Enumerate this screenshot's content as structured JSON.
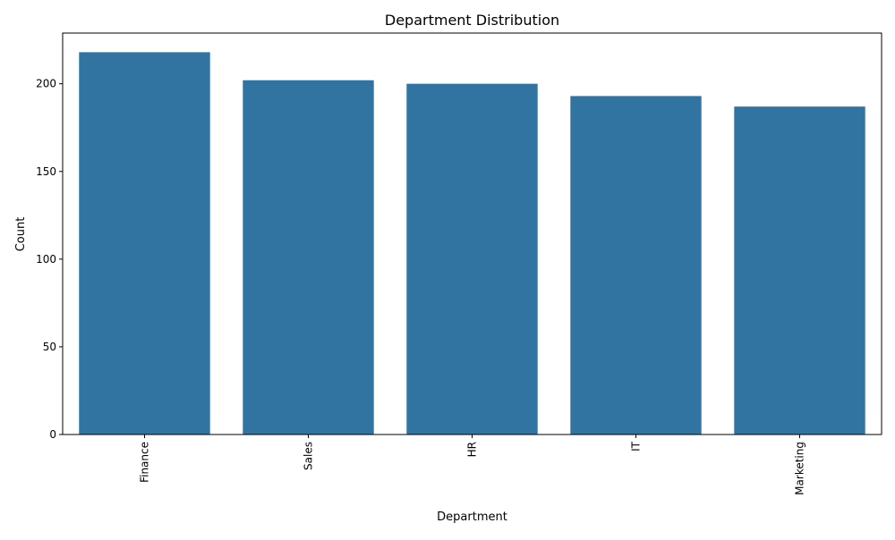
{
  "chart_data": {
    "type": "bar",
    "title": "Department Distribution",
    "xlabel": "Department",
    "ylabel": "Count",
    "categories": [
      "Finance",
      "Sales",
      "HR",
      "IT",
      "Marketing"
    ],
    "values": [
      218,
      202,
      200,
      193,
      187
    ],
    "ylim": [
      0,
      228.9
    ],
    "yticks": [
      0,
      50,
      100,
      150,
      200
    ],
    "ytick_labels": [
      "0",
      "50",
      "100",
      "150",
      "200"
    ],
    "bar_color": "#3274a1",
    "grid": false,
    "legend": "none",
    "xtick_rotation": "vertical"
  }
}
